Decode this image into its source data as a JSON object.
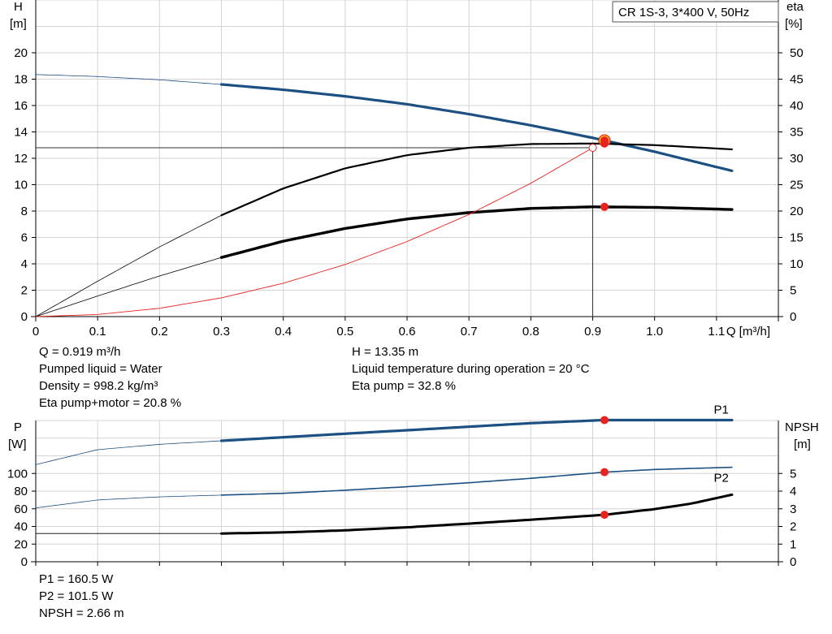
{
  "chart_data": [
    {
      "type": "line",
      "title": "CR 1S-3, 3*400 V, 50Hz",
      "xlabel": "Q [m³/h]",
      "x_ticks": [
        "0",
        "0.1",
        "0.2",
        "0.3",
        "0.4",
        "0.5",
        "0.6",
        "0.7",
        "0.8",
        "0.9",
        "1.0",
        "1.1"
      ],
      "xlim": [
        0,
        1.2
      ],
      "y_left_label_top": "H",
      "y_left_label_unit": "[m]",
      "y_left_ticks": [
        "0",
        "2",
        "4",
        "6",
        "8",
        "10",
        "12",
        "14",
        "16",
        "18",
        "20"
      ],
      "y_left_lim": [
        0,
        24
      ],
      "y_right_label_top": "eta",
      "y_right_label_unit": "[%]",
      "y_right_ticks": [
        "0",
        "5",
        "10",
        "15",
        "20",
        "25",
        "30",
        "35",
        "40",
        "45",
        "50"
      ],
      "y_right_lim": [
        0,
        60
      ],
      "grid": true,
      "series": [
        {
          "key": "head",
          "axis": "left",
          "color": "#1c4f82",
          "x": [
            0,
            0.1,
            0.2,
            0.3,
            0.4,
            0.5,
            0.6,
            0.7,
            0.8,
            0.9,
            1.0,
            1.125
          ],
          "y": [
            18.35,
            18.2,
            17.95,
            17.6,
            17.2,
            16.7,
            16.1,
            15.35,
            14.5,
            13.55,
            12.5,
            11.05
          ]
        },
        {
          "key": "eta_pump",
          "axis": "right",
          "color": "#000000",
          "x": [
            0,
            0.1,
            0.2,
            0.3,
            0.4,
            0.5,
            0.6,
            0.7,
            0.8,
            0.9,
            1.0,
            1.125
          ],
          "y": [
            0,
            6.7,
            13.2,
            19.2,
            24.3,
            28.1,
            30.6,
            32.0,
            32.7,
            32.8,
            32.5,
            31.7
          ]
        },
        {
          "key": "eta_pump_motor",
          "axis": "right",
          "color": "#000000",
          "x": [
            0,
            0.1,
            0.2,
            0.3,
            0.4,
            0.5,
            0.6,
            0.7,
            0.8,
            0.9,
            1.0,
            1.125
          ],
          "y": [
            0,
            3.9,
            7.7,
            11.2,
            14.3,
            16.7,
            18.5,
            19.7,
            20.5,
            20.8,
            20.7,
            20.3
          ]
        },
        {
          "key": "system_curve",
          "axis": "left",
          "color": "#e8231e",
          "x": [
            0,
            0.1,
            0.2,
            0.3,
            0.4,
            0.5,
            0.6,
            0.7,
            0.8,
            0.9
          ],
          "y": [
            0,
            0.16,
            0.63,
            1.42,
            2.53,
            3.95,
            5.69,
            7.74,
            10.11,
            12.8
          ]
        }
      ],
      "duty_point": {
        "q": 0.919,
        "h": 13.35,
        "eta_pump": 32.8,
        "eta_pump_motor": 20.8
      },
      "reference_point": {
        "q": 0.9,
        "h": 12.8
      }
    },
    {
      "type": "line",
      "xlim": [
        0,
        1.2
      ],
      "y_left_label_top": "P",
      "y_left_label_unit": "[W]",
      "y_left_ticks": [
        "0",
        "20",
        "40",
        "60",
        "80",
        "100"
      ],
      "y_left_lim": [
        0,
        160
      ],
      "y_right_label_top": "NPSH",
      "y_right_label_unit": "[m]",
      "y_right_ticks": [
        "0",
        "1",
        "2",
        "3",
        "4",
        "5"
      ],
      "y_right_lim": [
        0,
        8
      ],
      "grid": true,
      "series": [
        {
          "key": "p1",
          "name": "P1",
          "axis": "left",
          "color": "#1c4f82",
          "x": [
            0,
            0.1,
            0.2,
            0.3,
            0.4,
            0.5,
            0.6,
            0.7,
            0.8,
            0.919,
            1.0,
            1.125
          ],
          "y": [
            110,
            127,
            133,
            137,
            141,
            145,
            149,
            153,
            157,
            160.5,
            160.5,
            160.5
          ]
        },
        {
          "key": "p2",
          "name": "P2",
          "axis": "left",
          "color": "#1c4f82",
          "x": [
            0,
            0.1,
            0.2,
            0.3,
            0.4,
            0.5,
            0.6,
            0.7,
            0.8,
            0.919,
            1.0,
            1.125
          ],
          "y": [
            61,
            70,
            73.5,
            75.5,
            77.5,
            81,
            85,
            89.5,
            94.5,
            101.5,
            104.5,
            107
          ]
        },
        {
          "key": "npsh",
          "axis": "right",
          "color": "#000000",
          "x": [
            0,
            0.3,
            0.4,
            0.5,
            0.6,
            0.7,
            0.8,
            0.919,
            1.0,
            1.06,
            1.125
          ],
          "y": [
            1.6,
            1.6,
            1.66,
            1.78,
            1.95,
            2.16,
            2.38,
            2.66,
            2.98,
            3.3,
            3.8
          ]
        }
      ],
      "duty_point": {
        "q": 0.919,
        "p1": 160.5,
        "p2": 101.5,
        "npsh": 2.66
      }
    }
  ],
  "info_top_left": [
    "Q = 0.919 m³/h",
    "Pumped liquid = Water",
    "Density = 998.2 kg/m³",
    "Eta pump+motor = 20.8 %"
  ],
  "info_top_right": [
    "H = 13.35 m",
    "Liquid temperature during operation = 20 °C",
    "Eta pump = 32.8 %"
  ],
  "info_bottom": [
    "P1 = 160.5 W",
    "P2 = 101.5 W",
    "NPSH = 2.66 m"
  ]
}
